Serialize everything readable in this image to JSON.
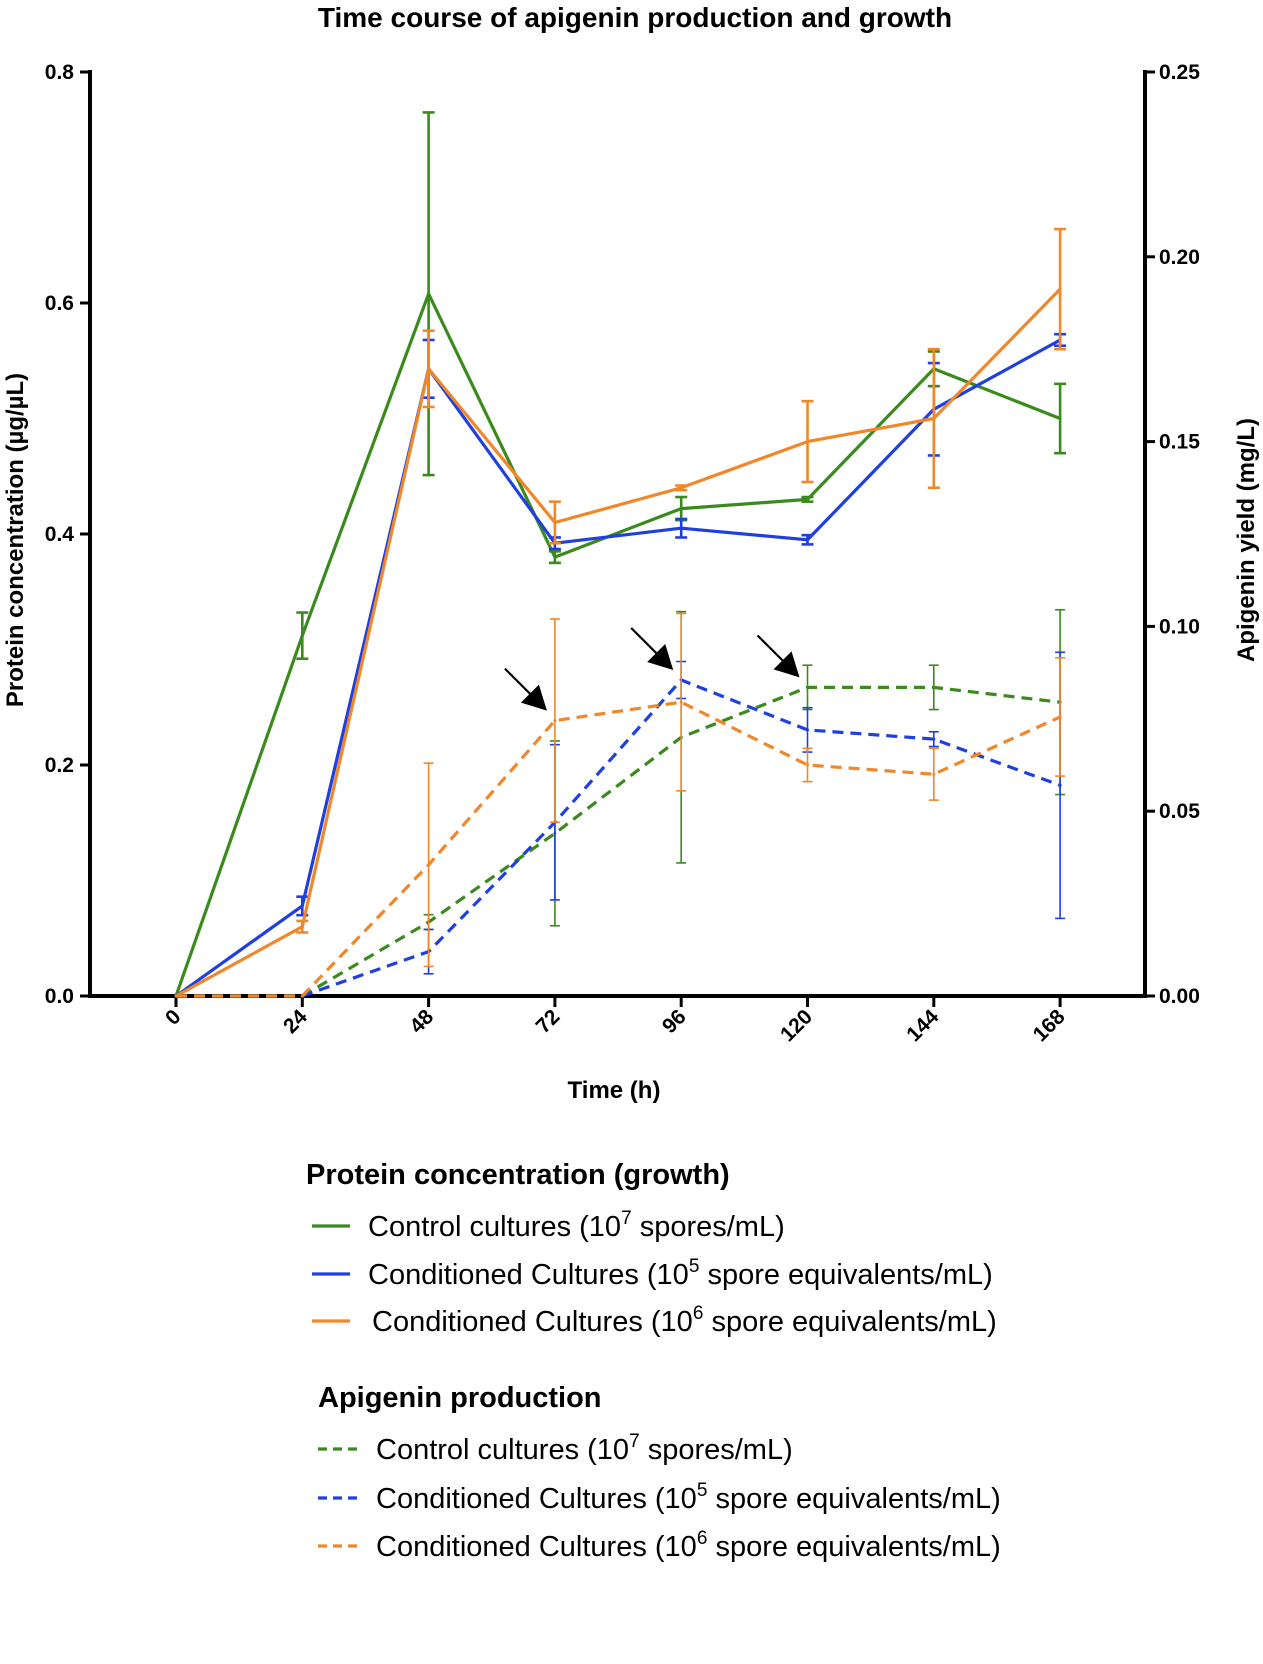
{
  "chart_data": {
    "type": "line",
    "title": "Time course of apigenin production and growth",
    "xlabel": "Time (h)",
    "ylabel_left": "Protein concentration (µg/µL)",
    "ylabel_right": "Apigenin yield (mg/L)",
    "x": [
      0,
      24,
      48,
      72,
      96,
      120,
      144,
      168
    ],
    "x_tick_labels": [
      "0",
      "24",
      "48",
      "72",
      "96",
      "120",
      "144",
      "168"
    ],
    "ylim_left": [
      0,
      0.8
    ],
    "y_ticks_left": [
      "0.0",
      "0.2",
      "0.4",
      "0.6",
      "0.8"
    ],
    "ylim_right": [
      0,
      0.25
    ],
    "y_ticks_right": [
      "0.00",
      "0.05",
      "0.10",
      "0.15",
      "0.20",
      "0.25"
    ],
    "grid": false,
    "series": [
      {
        "group": "protein",
        "axis": "left",
        "name": "Control cultures (10^7 spores/mL)",
        "color": "#3a8a1e",
        "dash": false,
        "values": [
          0,
          0.312,
          0.608,
          0.38,
          0.422,
          0.43,
          0.543,
          0.5
        ],
        "error": [
          0,
          0.02,
          0.157,
          0.005,
          0.01,
          0.002,
          0.015,
          0.03
        ]
      },
      {
        "group": "protein",
        "axis": "left",
        "name": "Conditioned Cultures (10^5 spore equivalents/mL)",
        "color": "#1f3fe0",
        "dash": false,
        "values": [
          0,
          0.078,
          0.543,
          0.392,
          0.405,
          0.395,
          0.508,
          0.568
        ],
        "error": [
          0,
          0.008,
          0.025,
          0.005,
          0.008,
          0.004,
          0.04,
          0.005
        ]
      },
      {
        "group": "protein",
        "axis": "left",
        "name": "Conditioned Cultures (10^6 spore equivalents/mL)",
        "color": "#f0872a",
        "dash": false,
        "values": [
          0,
          0.06,
          0.543,
          0.41,
          0.44,
          0.48,
          0.5,
          0.612
        ],
        "error": [
          0,
          0.005,
          0.033,
          0.018,
          0.002,
          0.035,
          0.06,
          0.052
        ]
      },
      {
        "group": "apigenin",
        "axis": "right",
        "name": "Control cultures (10^7 spores/mL)",
        "color": "#3a8a1e",
        "dash": true,
        "values": [
          0,
          0,
          0.02,
          0.044,
          0.07,
          0.0835,
          0.0835,
          0.0795
        ],
        "error": [
          0,
          0,
          0.002,
          0.025,
          0.034,
          0.006,
          0.006,
          0.025
        ]
      },
      {
        "group": "apigenin",
        "axis": "right",
        "name": "Conditioned Cultures (10^5 spore equivalents/mL)",
        "color": "#1f3fe0",
        "dash": true,
        "values": [
          0,
          0,
          0.012,
          0.047,
          0.0855,
          0.072,
          0.0695,
          0.057
        ],
        "error": [
          0,
          0,
          0.006,
          0.021,
          0.005,
          0.006,
          0.002,
          0.036
        ]
      },
      {
        "group": "apigenin",
        "axis": "right",
        "name": "Conditioned Cultures (10^6 spore equivalents/mL)",
        "color": "#f0872a",
        "dash": true,
        "values": [
          0,
          0,
          0.0355,
          0.0745,
          0.0795,
          0.0625,
          0.06,
          0.0755
        ],
        "error": [
          0,
          0,
          0.0275,
          0.0275,
          0.024,
          0.0045,
          0.007,
          0.016
        ]
      }
    ],
    "annotations": [
      {
        "type": "arrow",
        "label": "peak",
        "x": 72,
        "y": 0.0745,
        "axis": "right"
      },
      {
        "type": "arrow",
        "label": "peak",
        "x": 96,
        "y": 0.0855,
        "axis": "right"
      },
      {
        "type": "arrow",
        "label": "peak",
        "x": 120,
        "y": 0.0835,
        "axis": "right"
      }
    ],
    "legend": {
      "placement": "bottom",
      "groups": [
        {
          "title": "Protein concentration (growth)",
          "items": [
            {
              "series": 0,
              "text": "Control cultures (10",
              "sup": "7",
              "rest": " spores/mL)"
            },
            {
              "series": 1,
              "text": "Conditioned Cultures (10",
              "sup": "5",
              "rest": " spore equivalents/mL)"
            },
            {
              "series": 2,
              "text": "Conditioned Cultures (10",
              "sup": "6",
              "rest": " spore equivalents/mL)"
            }
          ]
        },
        {
          "title": "Apigenin production",
          "items": [
            {
              "series": 3,
              "text": "Control cultures (10",
              "sup": "7",
              "rest": " spores/mL)"
            },
            {
              "series": 4,
              "text": "Conditioned Cultures (10",
              "sup": "5",
              "rest": " spore equivalents/mL)"
            },
            {
              "series": 5,
              "text": "Conditioned Cultures (10",
              "sup": "6",
              "rest": " spore equivalents/mL)"
            }
          ]
        }
      ]
    }
  }
}
